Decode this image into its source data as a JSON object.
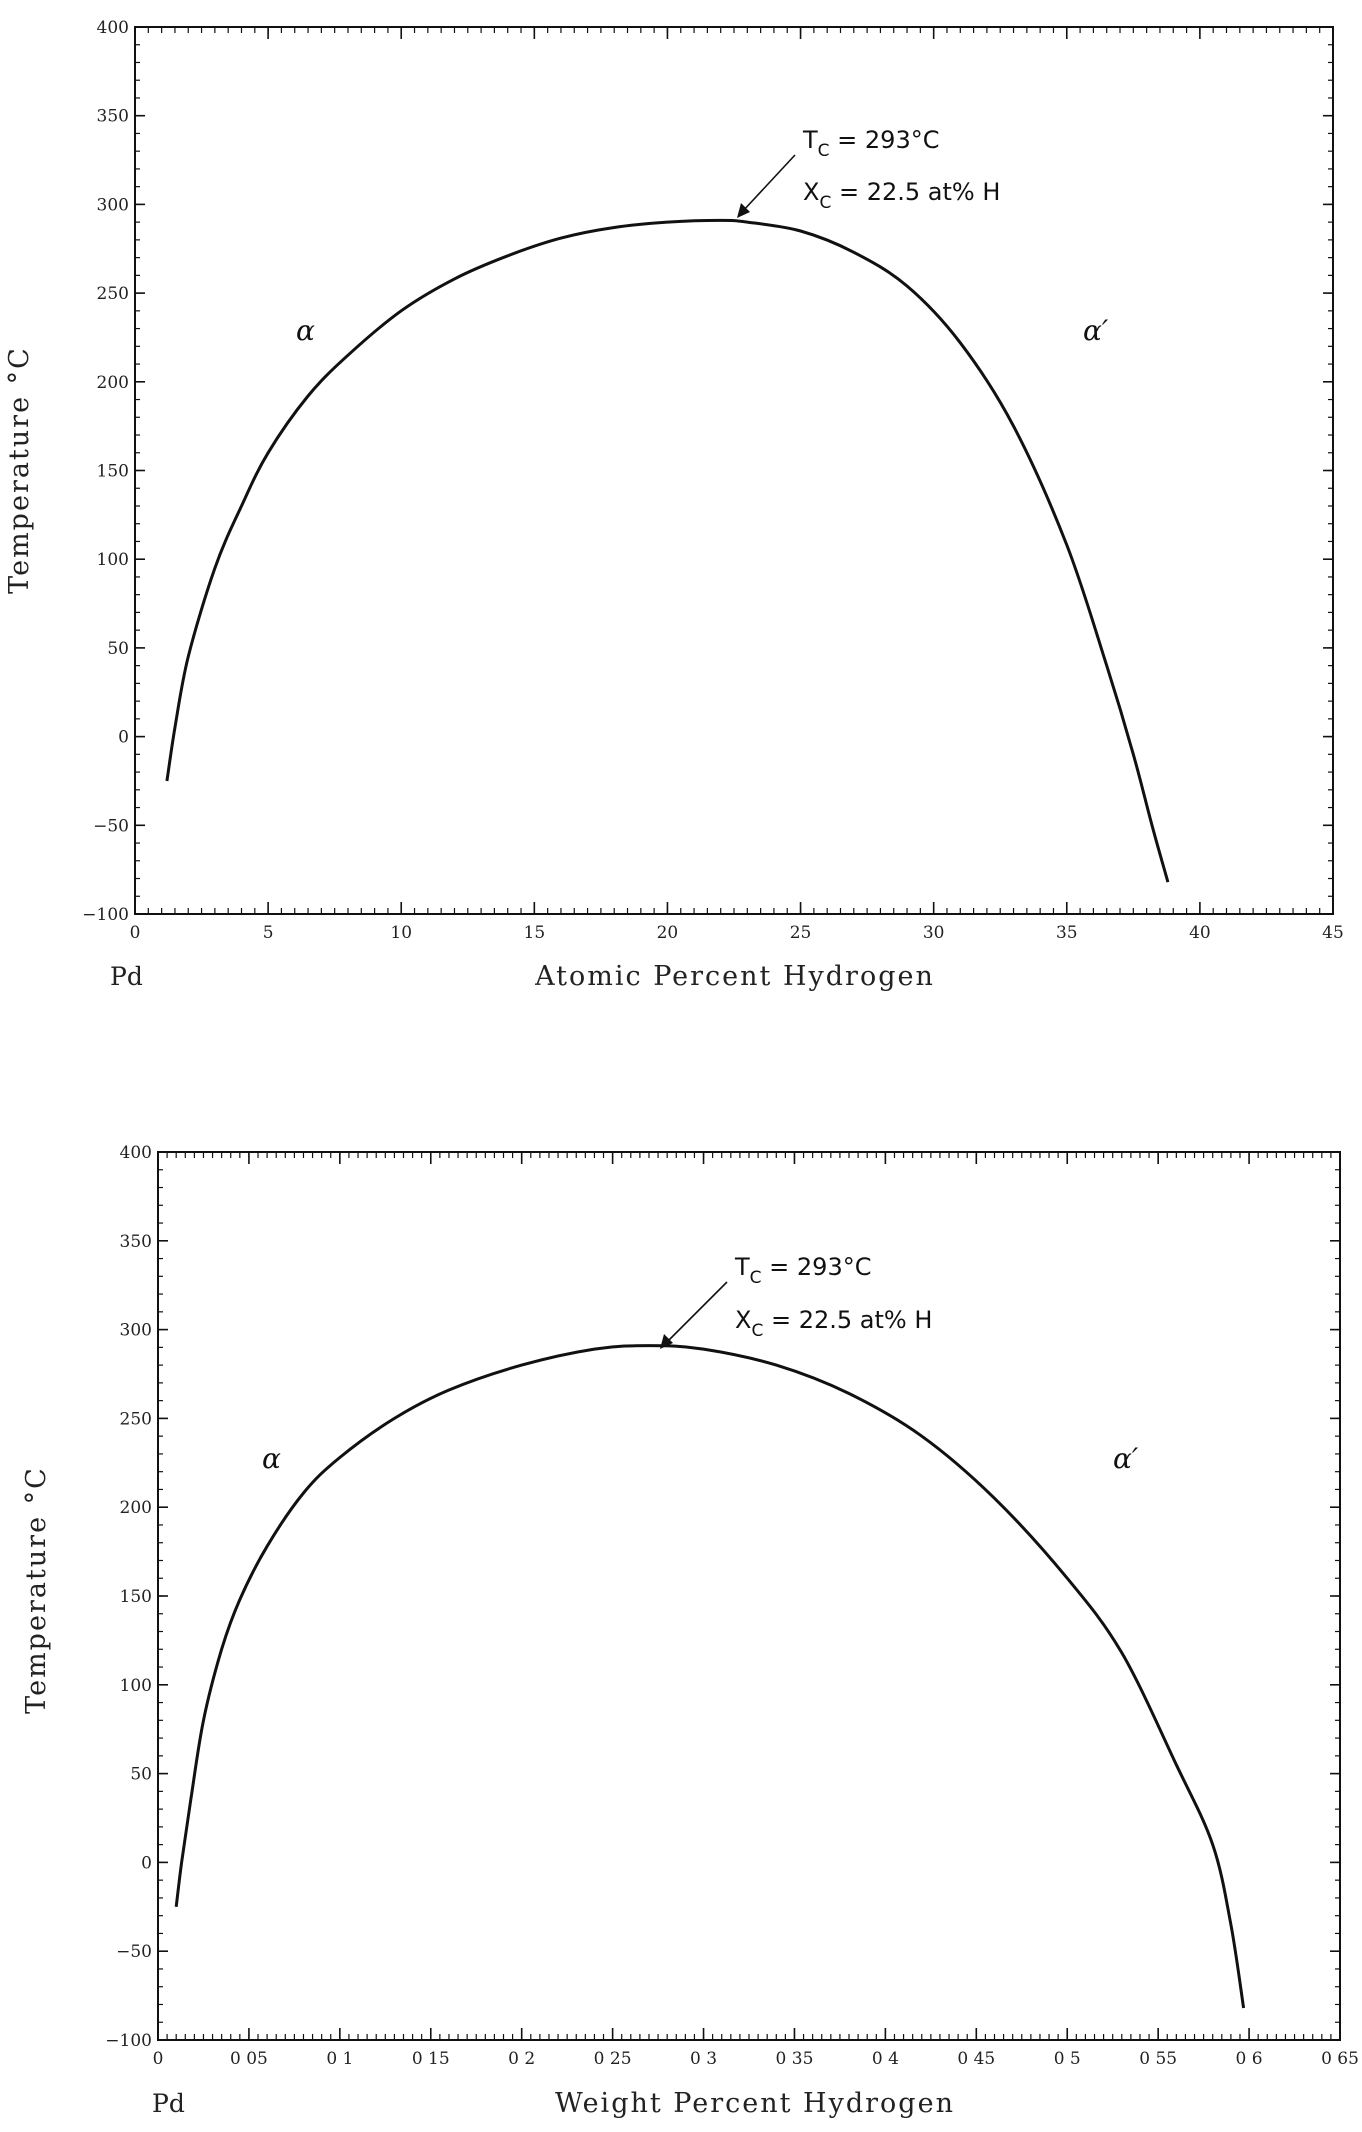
{
  "chart_data": [
    {
      "type": "line",
      "title": "",
      "xlabel": "Atomic Percent Hydrogen",
      "ylabel": "Temperature °C",
      "x_start_label": "Pd",
      "xlim": [
        0,
        45
      ],
      "ylim": [
        -100,
        400
      ],
      "x_ticks": [
        0,
        5,
        10,
        15,
        20,
        25,
        30,
        35,
        40,
        45
      ],
      "x_tick_labels": [
        "0",
        "5",
        "10",
        "15",
        "20",
        "25",
        "30",
        "35",
        "40",
        "45"
      ],
      "y_ticks": [
        -100,
        -50,
        0,
        50,
        100,
        150,
        200,
        250,
        300,
        350,
        400
      ],
      "y_tick_labels": [
        "−100",
        "−50",
        "0",
        "50",
        "100",
        "150",
        "200",
        "250",
        "300",
        "350",
        "400"
      ],
      "grid": false,
      "series": [
        {
          "x": [
            1.2,
            1.5,
            2.0,
            3.0,
            4.0,
            5.0,
            6.5,
            8.0,
            10.0,
            12.0,
            14.0,
            16.0,
            18.0,
            20.0,
            22.0,
            23.0,
            25.0,
            27.0,
            29.0,
            31.0,
            33.0,
            35.0,
            36.5,
            37.5,
            38.2,
            38.8
          ],
          "y": [
            -25,
            5,
            45,
            95,
            130,
            160,
            192,
            215,
            240,
            258,
            271,
            281,
            287,
            290,
            291,
            290,
            285,
            273,
            254,
            222,
            175,
            108,
            40,
            -10,
            -50,
            -82
          ]
        }
      ],
      "annotations": {
        "critical_line1": "T",
        "critical_sub1": "C",
        "critical_rest1": " = 293°C",
        "critical_line2": "X",
        "critical_sub2": "C",
        "critical_rest2": " = 22.5 at% H",
        "arrow_target": [
          22.5,
          291
        ],
        "phase_left": "α",
        "phase_right": "α′"
      }
    },
    {
      "type": "line",
      "title": "",
      "xlabel": "Weight Percent Hydrogen",
      "ylabel": "Temperature °C",
      "x_start_label": "Pd",
      "xlim": [
        0,
        0.65
      ],
      "ylim": [
        -100,
        400
      ],
      "x_ticks": [
        0,
        0.05,
        0.1,
        0.15,
        0.2,
        0.25,
        0.3,
        0.35,
        0.4,
        0.45,
        0.5,
        0.55,
        0.6,
        0.65
      ],
      "x_tick_labels": [
        "0",
        "0 05",
        "0 1",
        "0 15",
        "0 2",
        "0 25",
        "0 3",
        "0 35",
        "0 4",
        "0 45",
        "0 5",
        "0 55",
        "0 6",
        "0 65"
      ],
      "y_ticks": [
        -100,
        -50,
        0,
        50,
        100,
        150,
        200,
        250,
        300,
        350,
        400
      ],
      "y_tick_labels": [
        "−100",
        "−50",
        "0",
        "50",
        "100",
        "150",
        "200",
        "250",
        "300",
        "350",
        "400"
      ],
      "grid": false,
      "series": [
        {
          "x": [
            0.01,
            0.013,
            0.018,
            0.025,
            0.035,
            0.045,
            0.06,
            0.08,
            0.1,
            0.13,
            0.16,
            0.2,
            0.24,
            0.27,
            0.3,
            0.34,
            0.38,
            0.42,
            0.46,
            0.5,
            0.53,
            0.56,
            0.58,
            0.59,
            0.597
          ],
          "y": [
            -25,
            0,
            35,
            80,
            120,
            148,
            178,
            208,
            228,
            250,
            266,
            280,
            289,
            291,
            289,
            280,
            264,
            240,
            205,
            160,
            118,
            55,
            10,
            -35,
            -82
          ]
        }
      ],
      "annotations": {
        "critical_line1": "T",
        "critical_sub1": "C",
        "critical_rest1": " = 293°C",
        "critical_line2": "X",
        "critical_sub2": "C",
        "critical_rest2": " = 22.5 at% H",
        "arrow_target": [
          0.27,
          291
        ],
        "phase_left": "α",
        "phase_right": "α′"
      }
    }
  ]
}
